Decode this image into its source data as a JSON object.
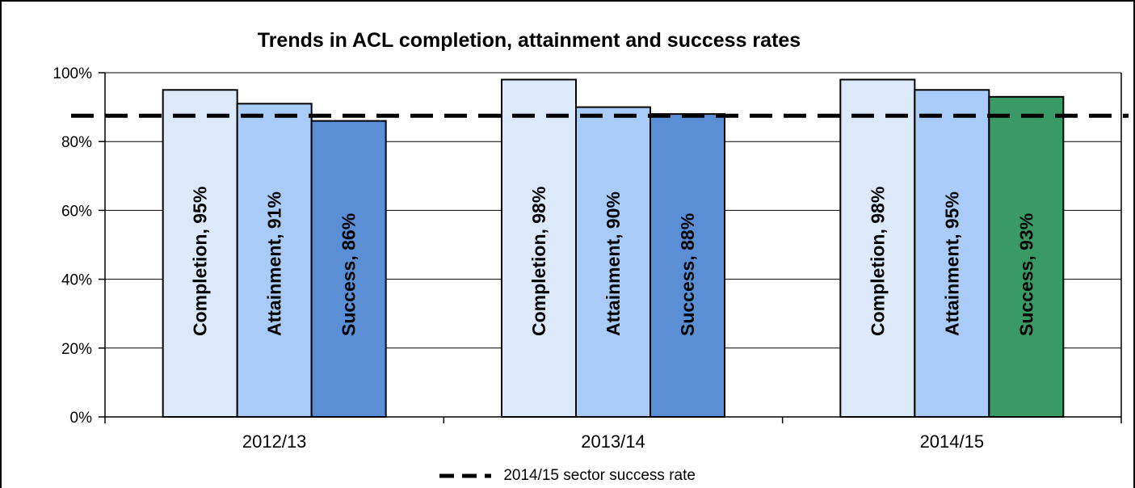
{
  "chart_data": {
    "type": "bar",
    "title": "Trends in ACL completion, attainment and success rates",
    "xlabel": "",
    "ylabel": "",
    "ylim": [
      0,
      100
    ],
    "yticks": [
      0,
      20,
      40,
      60,
      80,
      100
    ],
    "ytick_labels": [
      "0%",
      "20%",
      "40%",
      "60%",
      "80%",
      "100%"
    ],
    "categories": [
      "2012/13",
      "2013/14",
      "2014/15"
    ],
    "series": [
      {
        "name": "Completion",
        "values": [
          95,
          98,
          98
        ],
        "labels": [
          "Completion, 95%",
          "Completion, 98%",
          "Completion, 98%"
        ],
        "colors": [
          "#dce9fb",
          "#dce9fb",
          "#dce9fb"
        ]
      },
      {
        "name": "Attainment",
        "values": [
          91,
          90,
          95
        ],
        "labels": [
          "Attainment, 91%",
          "Attainment, 90%",
          "Attainment, 95%"
        ],
        "colors": [
          "#a8cbf7",
          "#a8cbf7",
          "#a8cbf7"
        ]
      },
      {
        "name": "Success",
        "values": [
          86,
          88,
          93
        ],
        "labels": [
          "Success, 86%",
          "Success, 88%",
          "Success, 93%"
        ],
        "colors": [
          "#5a8fd6",
          "#5a8fd6",
          "#3a9a66"
        ]
      }
    ],
    "reference_line": {
      "name": "2014/15 sector success rate",
      "value": 87.5,
      "style": "dashed",
      "color": "#000000"
    },
    "grid": true,
    "legend_position": "bottom"
  }
}
